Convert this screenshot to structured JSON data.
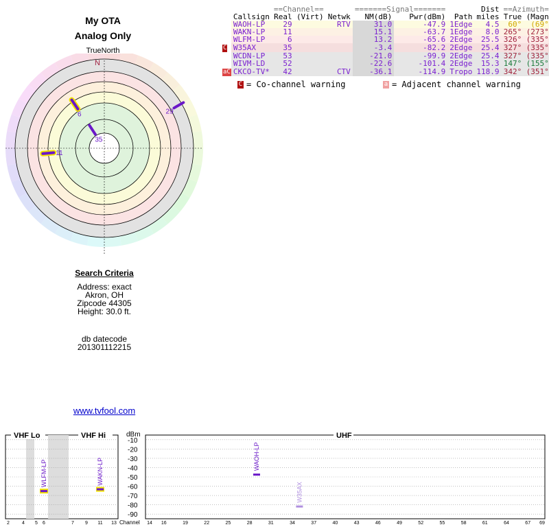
{
  "header": {
    "title_line1": "My OTA",
    "title_line2": "Analog Only",
    "true_north": "TrueNorth",
    "compass_n": "N"
  },
  "table": {
    "group_headers": {
      "channel": "==Channel==",
      "signal": "=======Signal=======",
      "dist": "Dist",
      "azimuth": "==Azimuth=="
    },
    "col_headers": [
      "Callsign",
      "Real",
      "(Virt)",
      "Netwk",
      "NM(dB)",
      "Pwr(dBm)",
      "Path",
      "miles",
      "True",
      "(Magn)"
    ],
    "rows": [
      {
        "flag": "",
        "callsign": "WAOH-LP",
        "real": "29",
        "virt": "",
        "netwk": "RTV",
        "nm": "31.0",
        "pwr": "-47.9",
        "path": "1Edge",
        "dist": "4.5",
        "az_true": "60°",
        "az_magn": "(69°)",
        "bg": "#fdfbe0",
        "color": "#7a1fd0",
        "azcolor": "#d1a800"
      },
      {
        "flag": "",
        "callsign": "WAKN-LP",
        "real": "11",
        "virt": "",
        "netwk": "",
        "nm": "15.1",
        "pwr": "-63.7",
        "path": "1Edge",
        "dist": "8.0",
        "az_true": "265°",
        "az_magn": "(273°)",
        "bg": "#fdf1e4",
        "color": "#7a1fd0",
        "azcolor": "#a0203a"
      },
      {
        "flag": "",
        "callsign": "WLFM-LP",
        "real": "6",
        "virt": "",
        "netwk": "",
        "nm": "13.2",
        "pwr": "-65.6",
        "path": "2Edge",
        "dist": "25.5",
        "az_true": "326°",
        "az_magn": "(335°)",
        "bg": "#fdeae8",
        "color": "#7a1fd0",
        "azcolor": "#a0203a"
      },
      {
        "flag": "C",
        "callsign": "W35AX",
        "real": "35",
        "virt": "",
        "netwk": "",
        "nm": "-3.4",
        "pwr": "-82.2",
        "path": "2Edge",
        "dist": "25.4",
        "az_true": "327°",
        "az_magn": "(335°)",
        "bg": "#f5dede",
        "color": "#7a1fd0",
        "azcolor": "#a0203a"
      },
      {
        "flag": "",
        "callsign": "WCDN-LP",
        "real": "53",
        "virt": "",
        "netwk": "",
        "nm": "-21.0",
        "pwr": "-99.9",
        "path": "2Edge",
        "dist": "25.4",
        "az_true": "327°",
        "az_magn": "(335°)",
        "bg": "#e6e6e6",
        "color": "#7a1fd0",
        "azcolor": "#a0203a"
      },
      {
        "flag": "",
        "callsign": "WIVM-LD",
        "real": "52",
        "virt": "",
        "netwk": "",
        "nm": "-22.6",
        "pwr": "-101.4",
        "path": "2Edge",
        "dist": "15.3",
        "az_true": "147°",
        "az_magn": "(155°)",
        "bg": "#e6e6e6",
        "color": "#7a1fd0",
        "azcolor": "#1a7a3a"
      },
      {
        "flag": "aC",
        "callsign": "CKCO-TV*",
        "real": "42",
        "virt": "",
        "netwk": "CTV",
        "nm": "-36.1",
        "pwr": "-114.9",
        "path": "Tropo",
        "dist": "118.9",
        "az_true": "342°",
        "az_magn": "(351°)",
        "bg": "#e6e6e6",
        "color": "#7a1fd0",
        "azcolor": "#a0203a"
      }
    ],
    "legend_cochannel": "= Co-channel warning",
    "legend_adjacent": "= Adjacent channel warning",
    "chip_c": "C",
    "chip_a": "a"
  },
  "criteria": {
    "heading": "Search Criteria",
    "address": "Address: exact",
    "city": "Akron, OH",
    "zipcode": "Zipcode 44305",
    "height": "Height: 30.0 ft.",
    "datecode_label": "db datecode",
    "datecode": "201301112215"
  },
  "link": "www.tvfool.com",
  "colors": {
    "station": "#6a18c8",
    "highlight": "#f2e400",
    "link": "#0000cc",
    "flag": "#b01010"
  },
  "chart_data": [
    {
      "type": "scatter",
      "title": "",
      "subtitle": "",
      "description_axis": "azimuth-distance",
      "points": [
        {
          "label": "29",
          "azimuth_deg": 60,
          "nm_db": 31.0
        },
        {
          "label": "11",
          "azimuth_deg": 265,
          "nm_db": 15.1
        },
        {
          "label": "6",
          "azimuth_deg": 326,
          "nm_db": 13.2
        },
        {
          "label": "35",
          "azimuth_deg": 327,
          "nm_db": -3.4
        }
      ]
    },
    {
      "type": "bar",
      "sections": [
        "VHF Lo",
        "VHF Hi",
        "UHF"
      ],
      "ylabel": "dBm",
      "xlabel": "Channel",
      "yticks": [
        "-10",
        "-20",
        "-30",
        "-40",
        "-50",
        "-60",
        "-70",
        "-80",
        "-90"
      ],
      "ylim": [
        -95,
        -5
      ],
      "vhf_lo_ticks": [
        "2",
        "4",
        "5",
        "6"
      ],
      "vhf_hi_ticks": [
        "7",
        "9",
        "11",
        "13"
      ],
      "uhf_ticks": [
        "14",
        "16",
        "19",
        "22",
        "25",
        "28",
        "31",
        "34",
        "37",
        "40",
        "43",
        "46",
        "49",
        "52",
        "55",
        "58",
        "61",
        "64",
        "67",
        "69"
      ],
      "series": [
        {
          "callsign": "WLFM-LP",
          "channel": 6,
          "pwr_dbm": -65.6,
          "section": "lo"
        },
        {
          "callsign": "WAKN-LP",
          "channel": 11,
          "pwr_dbm": -63.7,
          "section": "hi"
        },
        {
          "callsign": "WAOH-LP",
          "channel": 29,
          "pwr_dbm": -47.9,
          "section": "uhf"
        },
        {
          "callsign": "W35AX",
          "channel": 35,
          "pwr_dbm": -82.2,
          "section": "uhf"
        }
      ]
    }
  ]
}
